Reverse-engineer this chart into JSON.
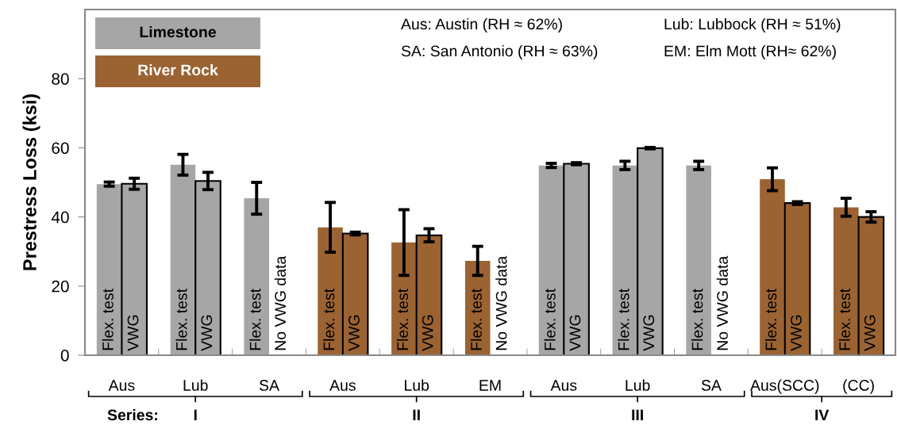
{
  "chart_data": {
    "type": "bar",
    "ylabel": "Prestress Loss (ksi)",
    "categories": [
      "Aus",
      "Lub",
      "SA",
      "Aus",
      "Lub",
      "EM",
      "Aus",
      "Lub",
      "SA",
      "Aus(SCC)",
      "(CC)"
    ],
    "ylim": [
      0,
      100
    ],
    "yticks": [
      0,
      20,
      40,
      60,
      80
    ],
    "grid": false,
    "series": [
      {
        "name": "Flex. test",
        "colors": [
          "#a6a6a6",
          "#a6a6a6",
          "#a6a6a6",
          "#9b6332",
          "#9b6332",
          "#9b6332",
          "#a6a6a6",
          "#a6a6a6",
          "#a6a6a6",
          "#9b6332",
          "#9b6332"
        ],
        "values": [
          49.5,
          55.1,
          45.4,
          37.0,
          32.6,
          27.3,
          54.9,
          54.9,
          54.9,
          50.9,
          42.8
        ],
        "errors": [
          0.6,
          3.0,
          4.6,
          7.2,
          9.5,
          4.2,
          0.6,
          1.2,
          1.2,
          3.3,
          2.6
        ]
      },
      {
        "name": "VWG",
        "colors": [
          "#a6a6a6",
          "#a6a6a6",
          null,
          "#9b6332",
          "#9b6332",
          null,
          "#a6a6a6",
          "#a6a6a6",
          null,
          "#9b6332",
          "#9b6332"
        ],
        "values": [
          49.6,
          50.4,
          null,
          35.2,
          34.7,
          null,
          55.4,
          59.9,
          null,
          44.0,
          40.0
        ],
        "errors": [
          1.6,
          2.5,
          null,
          0.4,
          1.9,
          null,
          0.3,
          0.2,
          null,
          0.4,
          1.5
        ],
        "value_labels": [
          null,
          null,
          "No VWG data",
          null,
          null,
          "No VWG data",
          null,
          null,
          "No VWG data",
          null,
          null
        ]
      }
    ],
    "annotations": [
      "Limestone",
      "River Rock",
      "Aus: Austin (RH ≈ 62%)",
      "Lub: Lubbock (RH ≈ 51%)",
      "SA: San Antonio (RH ≈ 63%)",
      "EM: Elm Mott (RH≈ 62%)",
      "Series:",
      "I",
      "II",
      "III",
      "IV"
    ]
  }
}
